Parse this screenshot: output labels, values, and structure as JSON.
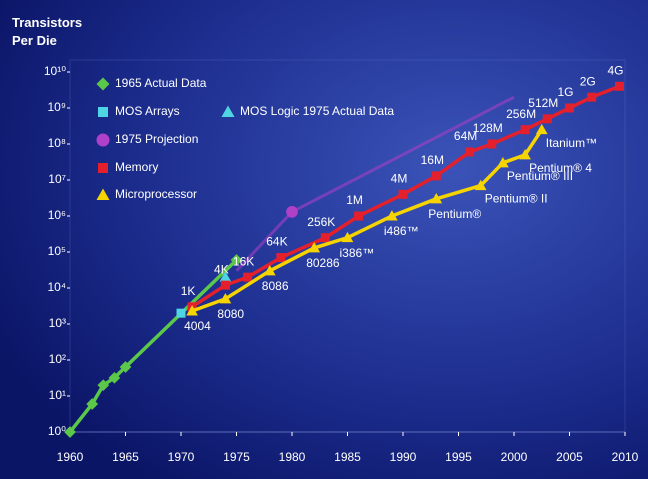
{
  "chart_data": {
    "type": "line",
    "ylabel": "Transistors Per Die",
    "log_y": true,
    "xlim": [
      1960,
      2010
    ],
    "xticks": [
      1960,
      1965,
      1970,
      1975,
      1980,
      1985,
      1990,
      1995,
      2000,
      2005,
      2010
    ],
    "ylim": [
      1,
      10000000000
    ],
    "yticks": [
      {
        "value": 1,
        "label": "10⁰"
      },
      {
        "value": 10,
        "label": "10¹"
      },
      {
        "value": 100,
        "label": "10²"
      },
      {
        "value": 1000,
        "label": "10³"
      },
      {
        "value": 10000,
        "label": "10⁴"
      },
      {
        "value": 100000,
        "label": "10⁵"
      },
      {
        "value": 1000000,
        "label": "10⁶"
      },
      {
        "value": 10000000,
        "label": "10⁷"
      },
      {
        "value": 100000000,
        "label": "10⁸"
      },
      {
        "value": 1000000000,
        "label": "10⁹"
      },
      {
        "value": 10000000000,
        "label": "10¹⁰"
      }
    ],
    "series": [
      {
        "name": "1965 Actual Data",
        "color": "#5cc84a",
        "marker": "diamond",
        "line": true,
        "x": [
          1960,
          1962,
          1963,
          1964,
          1965,
          1975
        ],
        "values": [
          1,
          6,
          20,
          32,
          64,
          60000
        ]
      },
      {
        "name": "MOS Arrays",
        "color": "#4fd4e4",
        "marker": "square",
        "line": false,
        "x": [
          1970
        ],
        "values": [
          2000
        ]
      },
      {
        "name": "MOS Logic 1975 Actual Data",
        "color": "#4fd4e4",
        "marker": "triangle",
        "line": false,
        "x": [
          1974
        ],
        "values": [
          20000
        ]
      },
      {
        "name": "1975 Projection",
        "color": "#b040c8",
        "marker": "circle",
        "line": true,
        "x": [
          1975,
          1980,
          2000
        ],
        "values": [
          30000,
          1300000,
          2000000000
        ]
      },
      {
        "name": "Memory",
        "color": "#e4202c",
        "marker": "square",
        "line": true,
        "x": [
          1971,
          1974,
          1976,
          1979,
          1983,
          1986,
          1990,
          1993,
          1996,
          1998,
          2001,
          2003,
          2005,
          2007,
          2009.5
        ],
        "values": [
          3000,
          12000,
          20000,
          70000,
          250000,
          1000000,
          4000000,
          13000000,
          60000000,
          100000000,
          250000000,
          500000000,
          1000000000,
          2000000000,
          4000000000
        ],
        "point_labels": [
          "1K",
          "4K",
          "16K",
          "64K",
          "256K",
          "1M",
          "4M",
          "16M",
          "64M",
          "128M",
          "256M",
          "512M",
          "1G",
          "2G",
          "4G"
        ]
      },
      {
        "name": "Microprocessor",
        "color": "#f5d400",
        "marker": "triangle",
        "line": true,
        "x": [
          1971,
          1974,
          1978,
          1982,
          1985,
          1989,
          1993,
          1997,
          1999,
          2001,
          2002.5
        ],
        "values": [
          2300,
          5000,
          30000,
          130000,
          250000,
          1000000,
          3000000,
          7000000,
          30000000,
          50000000,
          250000000
        ],
        "point_labels": [
          "4004",
          "8080",
          "8086",
          "80286",
          "i386™",
          "i486™",
          "Pentium®",
          "Pentium® II",
          "Pentium® III",
          "Pentium® 4",
          "Itanium™"
        ]
      }
    ]
  }
}
